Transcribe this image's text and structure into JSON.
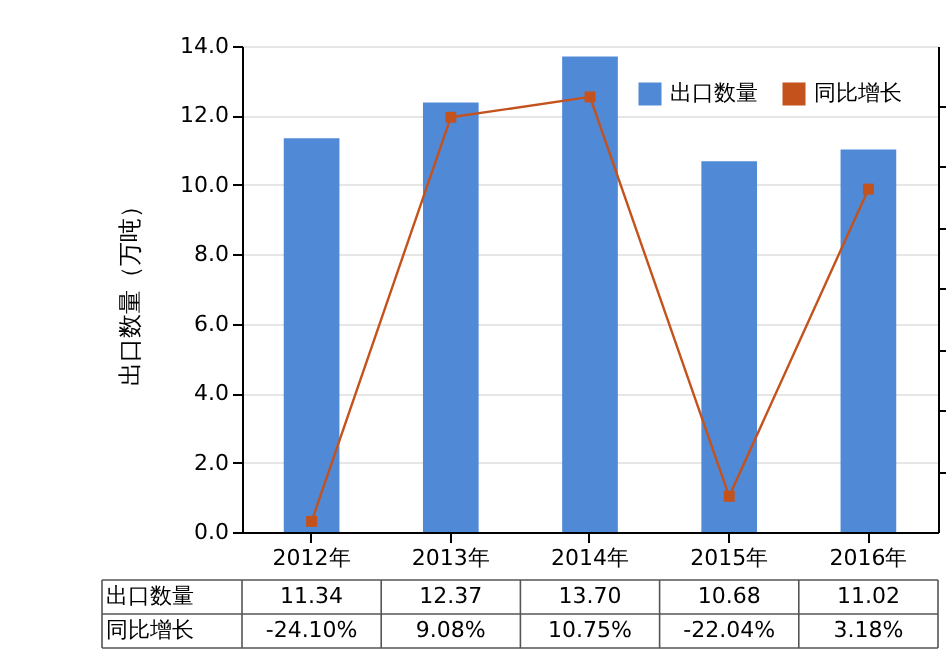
{
  "chart_data": {
    "type": "bar",
    "categories": [
      "2012年",
      "2013年",
      "2014年",
      "2015年",
      "2016年"
    ],
    "ylabel": "出口数量（万吨）",
    "ylim": [
      0,
      14
    ],
    "yticks": [
      {
        "value": 0,
        "label": "0.0"
      },
      {
        "value": 2,
        "label": "2.0"
      },
      {
        "value": 4,
        "label": "4.0"
      },
      {
        "value": 6,
        "label": "6.0"
      },
      {
        "value": 8,
        "label": "8.0"
      },
      {
        "value": 10,
        "label": "10.0"
      },
      {
        "value": 12,
        "label": "12.0"
      },
      {
        "value": 14,
        "label": "14.0"
      }
    ],
    "grid": "y",
    "legend": "top right",
    "series": [
      {
        "name": "出口数量",
        "color": "#5089d6",
        "values": [
          11.34,
          12.37,
          13.7,
          10.68,
          11.02
        ],
        "value_labels": [
          "11.34",
          "12.37",
          "13.70",
          "10.68",
          "11.02"
        ]
      },
      {
        "name": "同比增长",
        "type": "line",
        "axis": "y2",
        "marker": "square",
        "color": "#c4521d",
        "values": [
          -24.1,
          9.08,
          10.75,
          -22.04,
          3.18
        ],
        "value_labels": [
          "-24.10%",
          "9.08%",
          "10.75%",
          "-22.04%",
          "3.18%"
        ]
      }
    ]
  }
}
